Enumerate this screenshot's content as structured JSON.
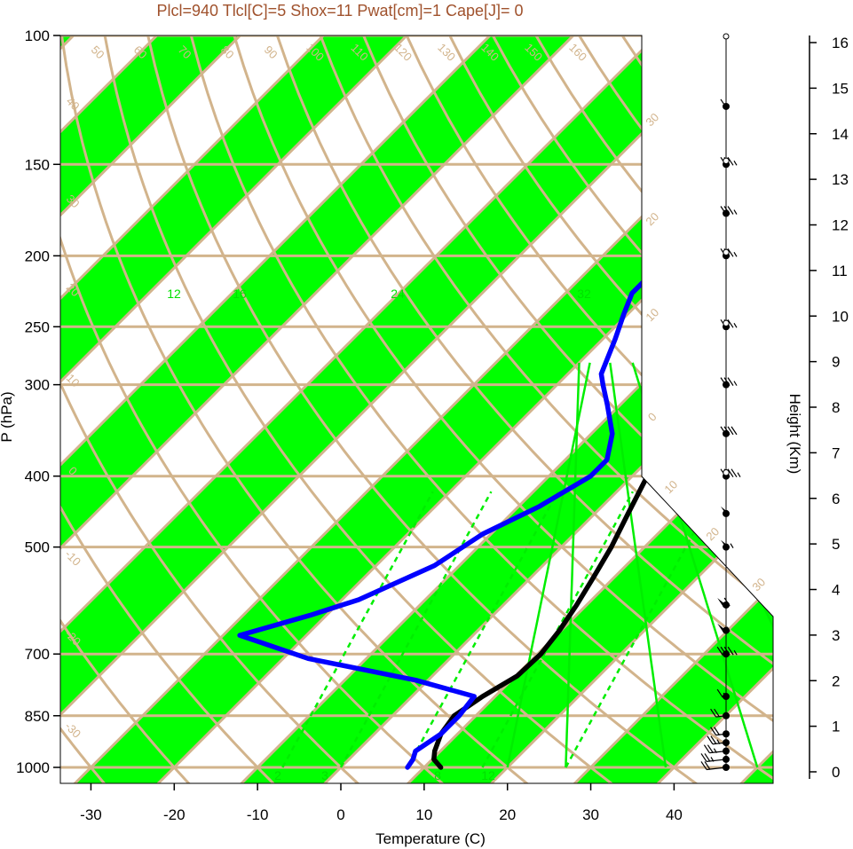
{
  "title": "Plcl=940 Tlcl[C]=5 Shox=11 Pwat[cm]=1 Cape[J]= 0",
  "colors": {
    "band_green": "#00ff00",
    "isobar_tan": "#d2b48c",
    "temperature_profile": "#000000",
    "dewpoint_profile": "#0000ff",
    "mixing_ratio": "#00ee00",
    "title_text": "#a0522d"
  },
  "chart_data": {
    "type": "line",
    "title": "Plcl=940 Tlcl[C]=5 Shox=11 Pwat[cm]=1 Cape[J]= 0",
    "xlabel": "Temperature (C)",
    "ylabel": "P (hPa)",
    "y2label": "Height (Km)",
    "y_scale": "log",
    "xlim": [
      -34,
      52
    ],
    "ylim": [
      1050,
      100
    ],
    "x_ticks": [
      "-30",
      "-20",
      "-10",
      "0",
      "10",
      "20",
      "30",
      "40"
    ],
    "y_ticks": [
      "100",
      "150",
      "200",
      "250",
      "300",
      "400",
      "500",
      "700",
      "850",
      "1000"
    ],
    "height_ticks": [
      "0",
      "1",
      "2",
      "3",
      "4",
      "5",
      "6",
      "7",
      "8",
      "9",
      "10",
      "11",
      "12",
      "13",
      "14",
      "15",
      "16"
    ],
    "isotherm_labels": [
      "50",
      "60",
      "70",
      "80",
      "90",
      "100",
      "110",
      "120",
      "130",
      "140",
      "150",
      "160"
    ],
    "side_temp_labels": [
      "30",
      "20",
      "10",
      "0"
    ],
    "side_temp_labels_low": [
      "10",
      "20",
      "30"
    ],
    "left_temp_labels": [
      "40",
      "30",
      "20",
      "10",
      "0",
      "-10",
      "-20",
      "-30"
    ],
    "mixing_ratio_labels": [
      "12",
      "16",
      "24",
      "32"
    ],
    "mixing_ratio_low_labels": [
      "2",
      "3",
      "8",
      "12"
    ],
    "series": [
      {
        "name": "Temperature",
        "points": [
          [
            12,
            1000
          ],
          [
            10.2,
            975
          ],
          [
            9.3,
            950
          ],
          [
            8,
            900
          ],
          [
            7.4,
            850
          ],
          [
            8.5,
            800
          ],
          [
            10.2,
            750
          ],
          [
            10.4,
            700
          ],
          [
            9.8,
            650
          ],
          [
            8.8,
            600
          ],
          [
            7.5,
            550
          ],
          [
            6,
            500
          ],
          [
            4,
            450
          ],
          [
            1.8,
            400
          ],
          [
            -0.8,
            350
          ],
          [
            -2.5,
            310
          ],
          [
            -3.8,
            280
          ],
          [
            -4.6,
            260
          ],
          [
            -4,
            250
          ],
          [
            -2.7,
            235
          ],
          [
            0,
            215
          ],
          [
            2.8,
            200
          ],
          [
            5,
            190
          ],
          [
            6.9,
            180
          ],
          [
            8.1,
            170
          ],
          [
            9,
            160
          ],
          [
            10,
            150
          ],
          [
            11.3,
            140
          ],
          [
            12.8,
            130
          ],
          [
            14.5,
            120
          ],
          [
            16.5,
            110
          ]
        ]
      },
      {
        "name": "Dewpoint",
        "points": [
          [
            8,
            1000
          ],
          [
            7.7,
            975
          ],
          [
            7,
            950
          ],
          [
            8,
            900
          ],
          [
            8,
            850
          ],
          [
            7.5,
            800
          ],
          [
            -1.5,
            760
          ],
          [
            -17,
            710
          ],
          [
            -28,
            660
          ],
          [
            -22,
            620
          ],
          [
            -18,
            590
          ],
          [
            -13,
            530
          ],
          [
            -11,
            480
          ],
          [
            -7.5,
            440
          ],
          [
            -5,
            400
          ],
          [
            -5,
            380
          ],
          [
            -7.5,
            350
          ],
          [
            -11.5,
            320
          ],
          [
            -14.5,
            300
          ],
          [
            -16,
            290
          ],
          [
            -18.5,
            260
          ],
          [
            -20.5,
            240
          ],
          [
            -22,
            225
          ],
          [
            -22,
            210
          ],
          [
            -22.2,
            190
          ],
          [
            -22.2,
            175
          ],
          [
            -19.2,
            160
          ],
          [
            -15.2,
            145
          ],
          [
            -11.8,
            130
          ],
          [
            -8,
            115
          ],
          [
            -6.5,
            110
          ]
        ]
      }
    ],
    "wind_barbs": [
      {
        "p": 1000,
        "dir": 240,
        "spd": 20
      },
      {
        "p": 975,
        "dir": 240,
        "spd": 25
      },
      {
        "p": 950,
        "dir": 245,
        "spd": 25
      },
      {
        "p": 925,
        "dir": 250,
        "spd": 25
      },
      {
        "p": 900,
        "dir": 255,
        "spd": 20
      },
      {
        "p": 850,
        "dir": 255,
        "spd": 20
      },
      {
        "p": 800,
        "dir": 265,
        "spd": 15
      },
      {
        "p": 700,
        "dir": 265,
        "spd": 45
      },
      {
        "p": 650,
        "dir": 265,
        "spd": 55
      },
      {
        "p": 600,
        "dir": 265,
        "spd": 60
      },
      {
        "p": 500,
        "dir": 270,
        "spd": 55
      },
      {
        "p": 450,
        "dir": 270,
        "spd": 50
      },
      {
        "p": 400,
        "dir": 270,
        "spd": 45
      },
      {
        "p": 350,
        "dir": 270,
        "spd": 40
      },
      {
        "p": 300,
        "dir": 270,
        "spd": 35
      },
      {
        "p": 250,
        "dir": 270,
        "spd": 35
      },
      {
        "p": 200,
        "dir": 270,
        "spd": 35
      },
      {
        "p": 175,
        "dir": 270,
        "spd": 35
      },
      {
        "p": 150,
        "dir": 270,
        "spd": 35
      },
      {
        "p": 125,
        "dir": 270,
        "spd": 10
      }
    ]
  }
}
